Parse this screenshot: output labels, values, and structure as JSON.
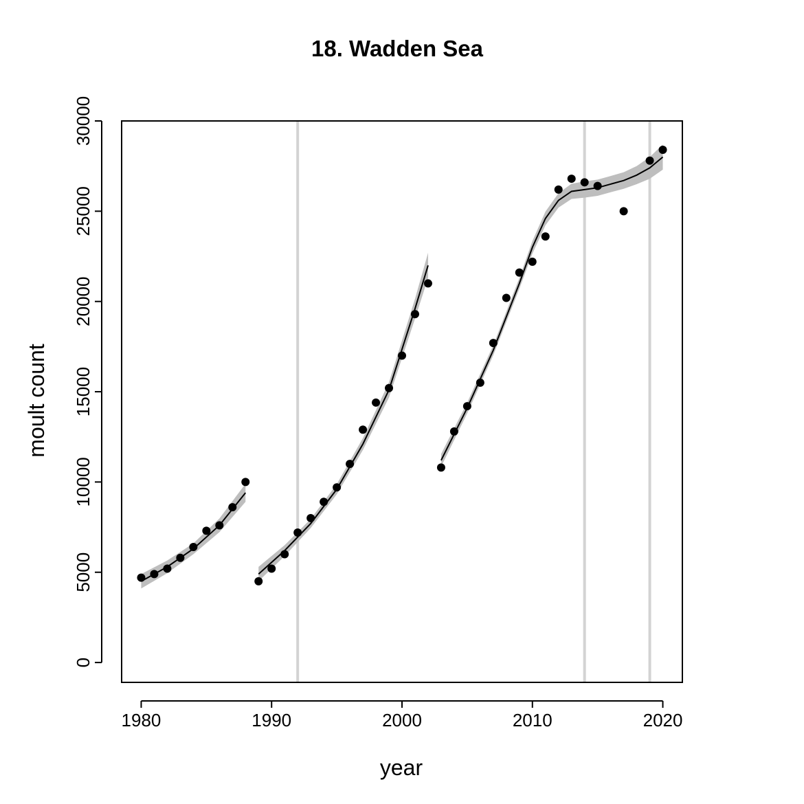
{
  "chart_data": {
    "type": "scatter",
    "title": "18. Wadden Sea",
    "xlabel": "year",
    "ylabel": "moult count",
    "xlim": [
      1978.5,
      2021.5
    ],
    "ylim": [
      -1100,
      30000
    ],
    "x_ticks": [
      1980,
      1990,
      2000,
      2010,
      2020
    ],
    "y_ticks": [
      0,
      5000,
      10000,
      15000,
      20000,
      25000,
      30000
    ],
    "x_tick_labels": [
      "1980",
      "1990",
      "2000",
      "2010",
      "2020"
    ],
    "y_tick_labels": [
      "0",
      "5000",
      "10000",
      "15000",
      "20000",
      "25000",
      "30000"
    ],
    "vertical_lines": [
      1992,
      2014,
      2019
    ],
    "colors": {
      "points": "#000000",
      "fit": "#000000",
      "band": "#bebebe",
      "vlines": "#d3d3d3",
      "frame": "#000000"
    },
    "series": [
      {
        "x": [
          1980,
          1981,
          1982,
          1983,
          1984,
          1985,
          1986,
          1987,
          1988
        ],
        "y": [
          4700,
          4900,
          5200,
          5800,
          6400,
          7300,
          7600,
          8600,
          10000
        ]
      },
      {
        "x": [
          1989,
          1990,
          1991,
          1992,
          1993,
          1994,
          1995,
          1996,
          1997,
          1998,
          1999,
          2000,
          2001,
          2002
        ],
        "y": [
          4500,
          5200,
          6000,
          7200,
          8000,
          8900,
          9700,
          11000,
          12900,
          14400,
          15200,
          17000,
          19300,
          21000
        ]
      },
      {
        "x": [
          2003,
          2004,
          2005,
          2006,
          2007,
          2008,
          2009,
          2010,
          2011,
          2012,
          2013,
          2014,
          2015,
          2017,
          2019,
          2020
        ],
        "y": [
          10800,
          12800,
          14200,
          15500,
          17700,
          20200,
          21600,
          22200,
          23600,
          26200,
          26800,
          26600,
          26400,
          25000,
          27800,
          28400
        ]
      }
    ],
    "fits": [
      {
        "x": [
          1980,
          1982,
          1984,
          1986,
          1988
        ],
        "y": [
          4500,
          5300,
          6300,
          7600,
          9400
        ],
        "band": [
          400,
          350,
          300,
          380,
          500
        ]
      },
      {
        "x": [
          1989,
          1991,
          1993,
          1995,
          1997,
          1999,
          2001,
          2002
        ],
        "y": [
          4900,
          6200,
          7700,
          9600,
          12100,
          15100,
          19600,
          22000
        ],
        "band": [
          400,
          300,
          250,
          280,
          330,
          420,
          550,
          700
        ]
      },
      {
        "x": [
          2003,
          2005,
          2007,
          2009,
          2010,
          2011,
          2012,
          2013,
          2014,
          2015,
          2016,
          2017,
          2018,
          2019,
          2020
        ],
        "y": [
          11200,
          14100,
          17300,
          21000,
          23000,
          24600,
          25600,
          26100,
          26200,
          26300,
          26500,
          26700,
          27000,
          27400,
          28000
        ],
        "band": [
          350,
          300,
          280,
          300,
          350,
          380,
          400,
          420,
          450,
          450,
          450,
          460,
          500,
          600,
          700
        ]
      }
    ]
  }
}
